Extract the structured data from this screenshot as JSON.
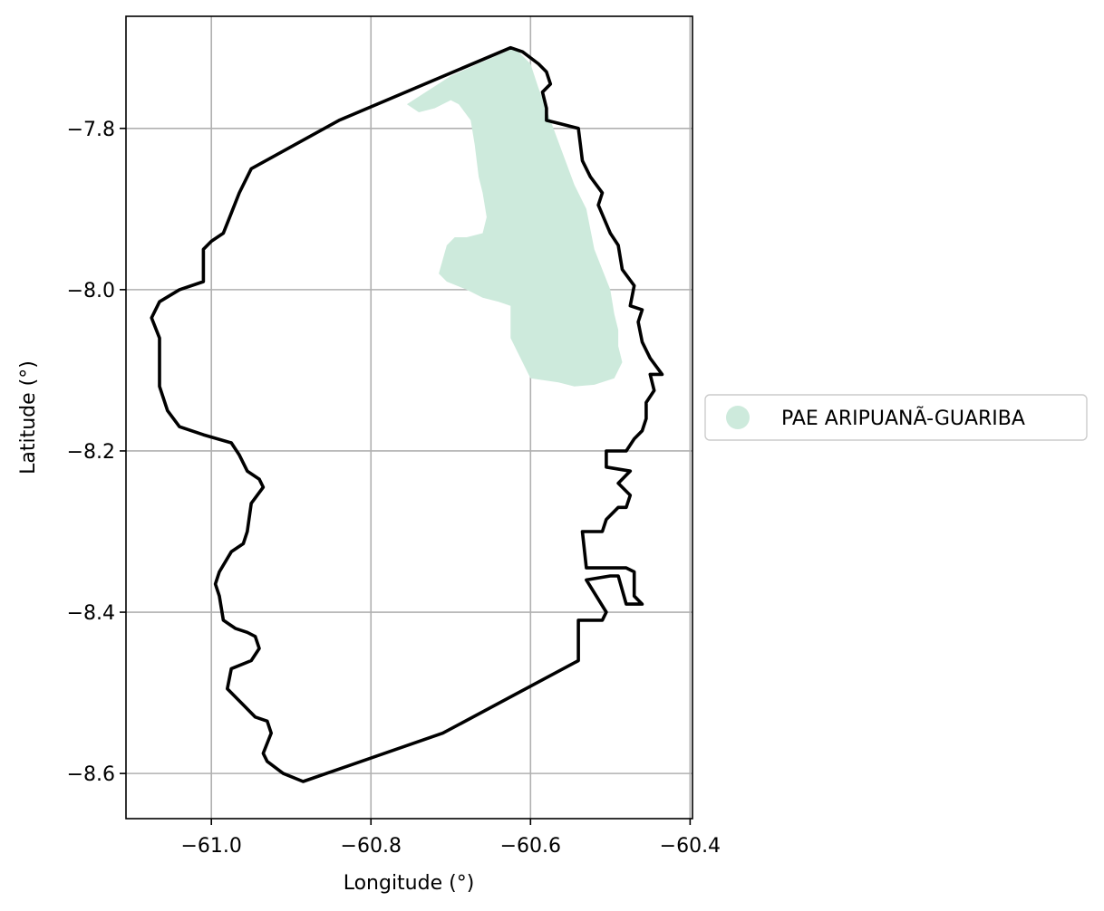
{
  "map": {
    "xlabel": "Longitude (°)",
    "ylabel": "Latitude (°)",
    "x_ticks": [
      -61.0,
      -60.8,
      -60.6,
      -60.4
    ],
    "y_ticks": [
      -7.8,
      -8.0,
      -8.2,
      -8.4,
      -8.6
    ],
    "x_tick_labels": [
      "−61.0",
      "−60.8",
      "−60.6",
      "−60.4"
    ],
    "y_tick_labels": [
      "−7.8",
      "−8.0",
      "−8.2",
      "−8.4",
      "−8.6"
    ],
    "xlim": [
      -61.107,
      -60.397
    ],
    "ylim": [
      -8.656,
      -7.661
    ],
    "grid": true,
    "legend": {
      "placement": "center-right, outside axes",
      "entries": [
        {
          "label": "PAE ARIPUANÃ-GUARIBA",
          "color": "#cdeadc"
        }
      ]
    },
    "outline_color": "#000000",
    "layers": [
      {
        "name": "boundary",
        "kind": "outline",
        "color": "#000000",
        "coordinates": [
          [
            -60.84,
            -7.79
          ],
          [
            -60.95,
            -7.85
          ],
          [
            -60.965,
            -7.88
          ],
          [
            -60.975,
            -7.905
          ],
          [
            -60.985,
            -7.93
          ],
          [
            -61.0,
            -7.94
          ],
          [
            -61.01,
            -7.95
          ],
          [
            -61.01,
            -7.97
          ],
          [
            -61.01,
            -7.99
          ],
          [
            -61.04,
            -8.0
          ],
          [
            -61.065,
            -8.015
          ],
          [
            -61.075,
            -8.035
          ],
          [
            -61.065,
            -8.06
          ],
          [
            -61.065,
            -8.12
          ],
          [
            -61.055,
            -8.15
          ],
          [
            -61.04,
            -8.17
          ],
          [
            -61.01,
            -8.18
          ],
          [
            -60.975,
            -8.19
          ],
          [
            -60.965,
            -8.205
          ],
          [
            -60.955,
            -8.225
          ],
          [
            -60.94,
            -8.235
          ],
          [
            -60.935,
            -8.245
          ],
          [
            -60.95,
            -8.265
          ],
          [
            -60.955,
            -8.3
          ],
          [
            -60.96,
            -8.315
          ],
          [
            -60.975,
            -8.325
          ],
          [
            -60.99,
            -8.35
          ],
          [
            -60.995,
            -8.365
          ],
          [
            -60.99,
            -8.38
          ],
          [
            -60.985,
            -8.41
          ],
          [
            -60.97,
            -8.42
          ],
          [
            -60.955,
            -8.425
          ],
          [
            -60.945,
            -8.43
          ],
          [
            -60.94,
            -8.445
          ],
          [
            -60.95,
            -8.46
          ],
          [
            -60.975,
            -8.47
          ],
          [
            -60.98,
            -8.495
          ],
          [
            -60.97,
            -8.505
          ],
          [
            -60.96,
            -8.515
          ],
          [
            -60.945,
            -8.53
          ],
          [
            -60.93,
            -8.535
          ],
          [
            -60.925,
            -8.55
          ],
          [
            -60.935,
            -8.575
          ],
          [
            -60.93,
            -8.585
          ],
          [
            -60.91,
            -8.6
          ],
          [
            -60.885,
            -8.61
          ],
          [
            -60.71,
            -8.55
          ],
          [
            -60.54,
            -8.46
          ],
          [
            -60.54,
            -8.41
          ],
          [
            -60.51,
            -8.41
          ],
          [
            -60.505,
            -8.4
          ],
          [
            -60.53,
            -8.36
          ],
          [
            -60.5,
            -8.355
          ],
          [
            -60.49,
            -8.355
          ],
          [
            -60.48,
            -8.39
          ],
          [
            -60.46,
            -8.39
          ],
          [
            -60.47,
            -8.38
          ],
          [
            -60.47,
            -8.35
          ],
          [
            -60.48,
            -8.345
          ],
          [
            -60.53,
            -8.345
          ],
          [
            -60.535,
            -8.3
          ],
          [
            -60.51,
            -8.3
          ],
          [
            -60.505,
            -8.285
          ],
          [
            -60.49,
            -8.27
          ],
          [
            -60.48,
            -8.27
          ],
          [
            -60.475,
            -8.255
          ],
          [
            -60.49,
            -8.24
          ],
          [
            -60.475,
            -8.225
          ],
          [
            -60.505,
            -8.22
          ],
          [
            -60.505,
            -8.2
          ],
          [
            -60.48,
            -8.2
          ],
          [
            -60.47,
            -8.185
          ],
          [
            -60.46,
            -8.175
          ],
          [
            -60.455,
            -8.16
          ],
          [
            -60.455,
            -8.14
          ],
          [
            -60.445,
            -8.125
          ],
          [
            -60.45,
            -8.105
          ],
          [
            -60.435,
            -8.105
          ],
          [
            -60.45,
            -8.085
          ],
          [
            -60.46,
            -8.065
          ],
          [
            -60.465,
            -8.04
          ],
          [
            -60.46,
            -8.025
          ],
          [
            -60.475,
            -8.02
          ],
          [
            -60.47,
            -7.995
          ],
          [
            -60.485,
            -7.975
          ],
          [
            -60.49,
            -7.945
          ],
          [
            -60.5,
            -7.93
          ],
          [
            -60.515,
            -7.895
          ],
          [
            -60.51,
            -7.88
          ],
          [
            -60.525,
            -7.86
          ],
          [
            -60.535,
            -7.84
          ],
          [
            -60.54,
            -7.8
          ],
          [
            -60.56,
            -7.795
          ],
          [
            -60.58,
            -7.79
          ],
          [
            -60.58,
            -7.775
          ],
          [
            -60.585,
            -7.755
          ],
          [
            -60.575,
            -7.745
          ],
          [
            -60.58,
            -7.73
          ],
          [
            -60.59,
            -7.72
          ],
          [
            -60.61,
            -7.705
          ],
          [
            -60.625,
            -7.7
          ],
          [
            -60.84,
            -7.79
          ]
        ]
      },
      {
        "name": "PAE ARIPUANÃ-GUARIBA",
        "kind": "area",
        "color": "#cdeadc",
        "coordinates": [
          [
            -60.755,
            -7.77
          ],
          [
            -60.74,
            -7.78
          ],
          [
            -60.72,
            -7.775
          ],
          [
            -60.7,
            -7.765
          ],
          [
            -60.69,
            -7.77
          ],
          [
            -60.675,
            -7.79
          ],
          [
            -60.67,
            -7.82
          ],
          [
            -60.665,
            -7.86
          ],
          [
            -60.66,
            -7.88
          ],
          [
            -60.655,
            -7.91
          ],
          [
            -60.66,
            -7.93
          ],
          [
            -60.68,
            -7.935
          ],
          [
            -60.695,
            -7.935
          ],
          [
            -60.705,
            -7.945
          ],
          [
            -60.715,
            -7.98
          ],
          [
            -60.705,
            -7.99
          ],
          [
            -60.68,
            -8.0
          ],
          [
            -60.66,
            -8.01
          ],
          [
            -60.64,
            -8.015
          ],
          [
            -60.625,
            -8.02
          ],
          [
            -60.625,
            -8.04
          ],
          [
            -60.625,
            -8.06
          ],
          [
            -60.615,
            -8.08
          ],
          [
            -60.605,
            -8.1
          ],
          [
            -60.6,
            -8.11
          ],
          [
            -60.565,
            -8.115
          ],
          [
            -60.545,
            -8.12
          ],
          [
            -60.52,
            -8.118
          ],
          [
            -60.495,
            -8.11
          ],
          [
            -60.485,
            -8.09
          ],
          [
            -60.49,
            -8.07
          ],
          [
            -60.49,
            -8.05
          ],
          [
            -60.495,
            -8.03
          ],
          [
            -60.5,
            -8.0
          ],
          [
            -60.51,
            -7.975
          ],
          [
            -60.52,
            -7.95
          ],
          [
            -60.53,
            -7.9
          ],
          [
            -60.545,
            -7.87
          ],
          [
            -60.56,
            -7.83
          ],
          [
            -60.575,
            -7.79
          ],
          [
            -60.59,
            -7.75
          ],
          [
            -60.6,
            -7.72
          ],
          [
            -60.62,
            -7.7
          ],
          [
            -60.7,
            -7.735
          ],
          [
            -60.755,
            -7.77
          ]
        ]
      }
    ]
  }
}
